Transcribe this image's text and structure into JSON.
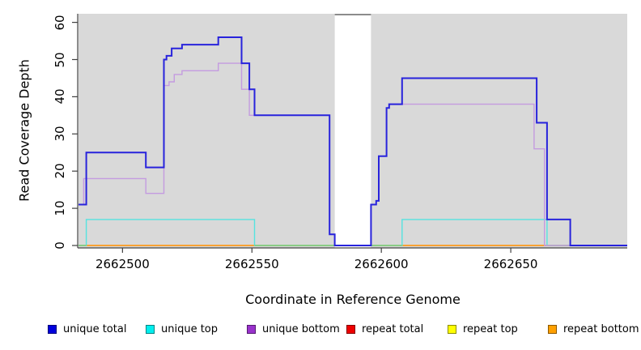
{
  "chart_data": {
    "type": "line",
    "line_style": "step-after",
    "title": "",
    "xlabel": "Coordinate in Reference Genome",
    "ylabel": "Read Coverage Depth",
    "xlim": [
      2662483,
      2662695
    ],
    "ylim": [
      0,
      62
    ],
    "x_ticks": [
      2662500,
      2662550,
      2662600,
      2662650
    ],
    "y_ticks": [
      0,
      10,
      20,
      30,
      40,
      50,
      60
    ],
    "grid": false,
    "legend_position": "bottom",
    "background": {
      "plot_bg": "#d9d9d9",
      "no_data_band": {
        "start": 2662582,
        "end": 2662596,
        "color": "#ffffff",
        "top_edge_color": "#8c8c8c"
      }
    },
    "series": [
      {
        "name": "unique total",
        "color": "#2823dc",
        "legend_color": "#0000dd",
        "width": 2,
        "steps": [
          [
            2662483,
            11
          ],
          [
            2662486,
            25
          ],
          [
            2662509,
            21
          ],
          [
            2662516,
            50
          ],
          [
            2662517,
            51
          ],
          [
            2662519,
            53
          ],
          [
            2662523,
            54
          ],
          [
            2662537,
            56
          ],
          [
            2662546,
            49
          ],
          [
            2662549,
            42
          ],
          [
            2662551,
            35
          ],
          [
            2662580,
            3
          ],
          [
            2662582,
            0
          ],
          [
            2662596,
            11
          ],
          [
            2662598,
            12
          ],
          [
            2662599,
            24
          ],
          [
            2662602,
            37
          ],
          [
            2662603,
            38
          ],
          [
            2662608,
            45
          ],
          [
            2662660,
            33
          ],
          [
            2662664,
            7
          ],
          [
            2662673,
            0
          ]
        ]
      },
      {
        "name": "unique top",
        "color": "#55e3e0",
        "legend_color": "#00eeee",
        "width": 1.4,
        "steps": [
          [
            2662483,
            0
          ],
          [
            2662486,
            7
          ],
          [
            2662551,
            0
          ],
          [
            2662608,
            7
          ],
          [
            2662664,
            0
          ]
        ]
      },
      {
        "name": "unique bottom",
        "color": "#c49be0",
        "legend_color": "#9932cc",
        "width": 1.4,
        "steps": [
          [
            2662483,
            11
          ],
          [
            2662485,
            18
          ],
          [
            2662509,
            14
          ],
          [
            2662516,
            43
          ],
          [
            2662518,
            44
          ],
          [
            2662520,
            46
          ],
          [
            2662523,
            47
          ],
          [
            2662537,
            49
          ],
          [
            2662546,
            42
          ],
          [
            2662549,
            35
          ],
          [
            2662580,
            3
          ],
          [
            2662582,
            0
          ],
          [
            2662596,
            11
          ],
          [
            2662598,
            12
          ],
          [
            2662599,
            24
          ],
          [
            2662602,
            37
          ],
          [
            2662603,
            38
          ],
          [
            2662659,
            26
          ],
          [
            2662663,
            0
          ]
        ]
      },
      {
        "name": "repeat total",
        "color": "#e00000",
        "legend_color": "#ee0000",
        "width": 1.2,
        "steps": [
          [
            2662483,
            0
          ]
        ]
      },
      {
        "name": "repeat top",
        "color": "#ffff00",
        "legend_color": "#ffff00",
        "width": 1.2,
        "steps": [
          [
            2662483,
            0
          ]
        ]
      },
      {
        "name": "repeat bottom",
        "color": "#ff9a1e",
        "legend_color": "#ffa000",
        "width": 1.6,
        "steps": [
          [
            2662483,
            0
          ]
        ]
      }
    ],
    "zero_line_overlap": {
      "color": "#82cd82",
      "ranges": [
        [
          2662483,
          2662486
        ],
        [
          2662551,
          2662582
        ],
        [
          2662596,
          2662608
        ],
        [
          2662664,
          2662695
        ]
      ]
    },
    "draw_order": [
      "repeat total",
      "repeat top",
      "repeat bottom",
      "unique top",
      "__overlap__",
      "unique bottom",
      "unique total"
    ]
  }
}
